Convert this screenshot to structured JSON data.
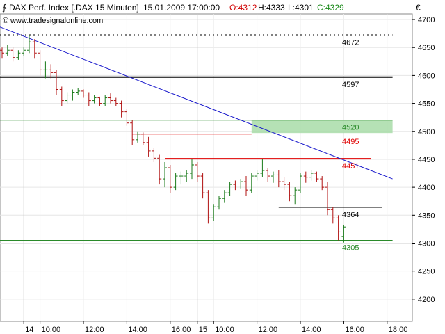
{
  "header": {
    "instrument": "DAX Perf. Index [.DAX  15 Minuten]",
    "datetime": "15.01.2009 17:00:00",
    "open": "O:4312",
    "high": "H:4333",
    "low": "L:4301",
    "close": "C:4329",
    "source": "www.tradesignalonline.com",
    "currency": "€"
  },
  "colors": {
    "bull": "#1a7a1a",
    "bear": "#b01010",
    "trendline": "#1a1acc",
    "resistance": "#e00000",
    "support_green": "#2a8a2a",
    "zone_fill": "#a8dca8",
    "black": "#000000"
  },
  "chart_data": {
    "type": "ohlc",
    "ylim": [
      4160,
      4710
    ],
    "y_ticks": [
      4700,
      4650,
      4600,
      4550,
      4500,
      4450,
      4400,
      4350,
      4300,
      4250,
      4200
    ],
    "x_ticks": [
      {
        "label": "14",
        "i": 4,
        "kind": "day"
      },
      {
        "label": "10:00",
        "i": 7
      },
      {
        "label": "12:00",
        "i": 15
      },
      {
        "label": "14:00",
        "i": 23
      },
      {
        "label": "16:00",
        "i": 31
      },
      {
        "label": "15",
        "i": 36,
        "kind": "day"
      },
      {
        "label": "10:00",
        "i": 39
      },
      {
        "label": "12:00",
        "i": 47
      },
      {
        "label": "14:00",
        "i": 55
      },
      {
        "label": "16:00",
        "i": 63
      },
      {
        "label": "18:00",
        "i": 71
      }
    ],
    "candles": [
      [
        4645,
        4650,
        4630,
        4640
      ],
      [
        4640,
        4655,
        4635,
        4645
      ],
      [
        4645,
        4650,
        4625,
        4632
      ],
      [
        4632,
        4645,
        4628,
        4640
      ],
      [
        4640,
        4650,
        4635,
        4645
      ],
      [
        4645,
        4672,
        4640,
        4660
      ],
      [
        4660,
        4665,
        4630,
        4640
      ],
      [
        4640,
        4645,
        4600,
        4610
      ],
      [
        4610,
        4625,
        4595,
        4610
      ],
      [
        4610,
        4620,
        4595,
        4605
      ],
      [
        4605,
        4610,
        4565,
        4575
      ],
      [
        4575,
        4580,
        4545,
        4555
      ],
      [
        4555,
        4570,
        4550,
        4565
      ],
      [
        4565,
        4575,
        4555,
        4570
      ],
      [
        4570,
        4578,
        4565,
        4572
      ],
      [
        4572,
        4575,
        4560,
        4565
      ],
      [
        4565,
        4570,
        4545,
        4555
      ],
      [
        4555,
        4565,
        4550,
        4560
      ],
      [
        4560,
        4562,
        4545,
        4550
      ],
      [
        4550,
        4565,
        4545,
        4560
      ],
      [
        4560,
        4568,
        4550,
        4555
      ],
      [
        4555,
        4560,
        4545,
        4550
      ],
      [
        4550,
        4555,
        4525,
        4535
      ],
      [
        4535,
        4540,
        4510,
        4515
      ],
      [
        4515,
        4520,
        4475,
        4485
      ],
      [
        4485,
        4500,
        4480,
        4495
      ],
      [
        4495,
        4498,
        4475,
        4480
      ],
      [
        4480,
        4490,
        4455,
        4465
      ],
      [
        4465,
        4470,
        4445,
        4452
      ],
      [
        4452,
        4458,
        4405,
        4415
      ],
      [
        4415,
        4445,
        4400,
        4435
      ],
      [
        4435,
        4440,
        4390,
        4400
      ],
      [
        4400,
        4425,
        4395,
        4420
      ],
      [
        4420,
        4428,
        4405,
        4420
      ],
      [
        4420,
        4430,
        4410,
        4425
      ],
      [
        4425,
        4450,
        4415,
        4440
      ],
      [
        4440,
        4445,
        4410,
        4420
      ],
      [
        4420,
        4425,
        4380,
        4390
      ],
      [
        4390,
        4395,
        4335,
        4345
      ],
      [
        4345,
        4370,
        4340,
        4365
      ],
      [
        4365,
        4385,
        4360,
        4380
      ],
      [
        4380,
        4395,
        4372,
        4390
      ],
      [
        4390,
        4410,
        4385,
        4405
      ],
      [
        4405,
        4412,
        4395,
        4402
      ],
      [
        4402,
        4415,
        4398,
        4410
      ],
      [
        4410,
        4420,
        4385,
        4395
      ],
      [
        4395,
        4425,
        4390,
        4420
      ],
      [
        4420,
        4430,
        4412,
        4425
      ],
      [
        4425,
        4450,
        4418,
        4430
      ],
      [
        4430,
        4435,
        4410,
        4420
      ],
      [
        4420,
        4428,
        4408,
        4422
      ],
      [
        4422,
        4430,
        4400,
        4410
      ],
      [
        4410,
        4418,
        4395,
        4405
      ],
      [
        4405,
        4410,
        4375,
        4385
      ],
      [
        4385,
        4400,
        4370,
        4395
      ],
      [
        4395,
        4425,
        4390,
        4420
      ],
      [
        4420,
        4428,
        4408,
        4418
      ],
      [
        4418,
        4430,
        4412,
        4425
      ],
      [
        4425,
        4428,
        4410,
        4415
      ],
      [
        4415,
        4420,
        4395,
        4400
      ],
      [
        4400,
        4410,
        4350,
        4360
      ],
      [
        4360,
        4365,
        4335,
        4345
      ],
      [
        4345,
        4350,
        4305,
        4320
      ],
      [
        4312,
        4333,
        4301,
        4329
      ]
    ],
    "levels": [
      {
        "value": 4672,
        "label": "4672",
        "style": "dotted",
        "color": "#000000",
        "i0": -1,
        "i1": 72
      },
      {
        "value": 4597,
        "label": "4597",
        "style": "solid-thick",
        "color": "#000000",
        "i0": -1,
        "i1": 72
      },
      {
        "value": 4520,
        "label": "4520",
        "style": "thin",
        "color": "#2a8a2a",
        "i0": -1,
        "i1": 72
      },
      {
        "value": 4495,
        "label": "4495",
        "style": "thin",
        "color": "#e00000",
        "i0": 24,
        "i1": 46
      },
      {
        "value": 4451,
        "label": "4451",
        "style": "thick",
        "color": "#e00000",
        "i0": 30,
        "i1": 68
      },
      {
        "value": 4364,
        "label": "4364",
        "style": "thin",
        "color": "#000000",
        "i0": 51,
        "i1": 70
      },
      {
        "value": 4305,
        "label": "4305",
        "style": "thin",
        "color": "#2a8a2a",
        "i0": -1,
        "i1": 72
      }
    ],
    "zone": {
      "top": 4520,
      "bottom": 4497,
      "i0": 46,
      "i1": 72
    },
    "trendline": {
      "i0": -1,
      "v0": 4689,
      "i1": 72,
      "v1": 4415
    }
  }
}
